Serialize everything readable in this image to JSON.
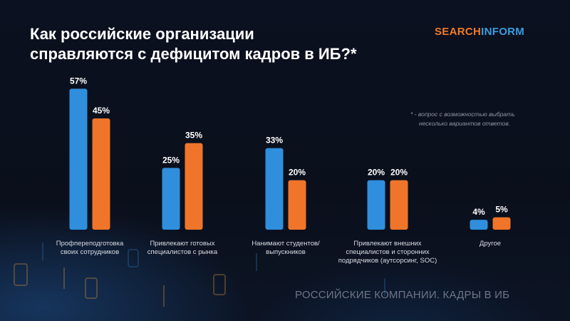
{
  "title": {
    "line1": "Как российские организации",
    "line2": "справляются с дефицитом кадров в ИБ?*"
  },
  "logo": {
    "part1": "SEARCH",
    "part2": "INFORM"
  },
  "note": {
    "line1": "*  -  вопрос с возможностью выбрать",
    "line2": "несколько вариантов ответов."
  },
  "footer": "РОССИЙСКИЕ КОМПАНИИ. КАДРЫ В ИБ",
  "colors": {
    "blue": "#2f8fdd",
    "orange": "#f0752a",
    "logo_orange": "#f07a2a",
    "logo_blue": "#3a9de0"
  },
  "chart_data": {
    "type": "bar",
    "categories": [
      [
        "Профпереподготовка",
        "своих сотрудников"
      ],
      [
        "Привлекают готовых",
        "специалистов с рынка"
      ],
      [
        "Нанимают студентов/",
        "выпускников"
      ],
      [
        "Привлекают внешних",
        "специалистов и сторонних",
        "подрядчиков (аутсорсинг, SOC)"
      ],
      [
        "Другое"
      ]
    ],
    "series": [
      {
        "values": [
          57,
          25,
          33,
          20,
          4
        ],
        "labels": [
          "57%",
          "25%",
          "33%",
          "20%",
          "4%"
        ],
        "color": "#2f8fdd"
      },
      {
        "values": [
          45,
          35,
          20,
          20,
          5
        ],
        "labels": [
          "45%",
          "35%",
          "20%",
          "20%",
          "5%"
        ],
        "color": "#f0752a"
      }
    ],
    "ylim": [
      0,
      60
    ],
    "grid": false,
    "legend": "none"
  }
}
